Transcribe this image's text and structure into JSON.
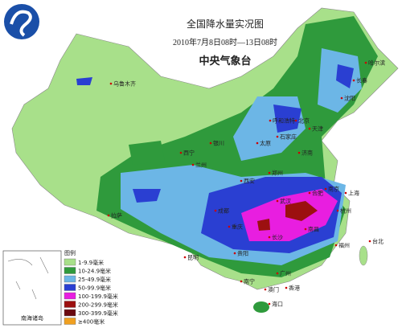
{
  "header": {
    "title": "全国降水量实况图",
    "subtitle": "2010年7月8日08时—13日08时",
    "agency": "中央气象台"
  },
  "legend": {
    "title": "图例",
    "items": [
      {
        "label": "1-9.9毫米",
        "color": "#a8e08a"
      },
      {
        "label": "10-24.9毫米",
        "color": "#2f9a3c"
      },
      {
        "label": "25-49.9毫米",
        "color": "#6cb6e6"
      },
      {
        "label": "50-99.9毫米",
        "color": "#2a3fd2"
      },
      {
        "label": "100-199.9毫米",
        "color": "#e81ee0"
      },
      {
        "label": "200-299.9毫米",
        "color": "#9c1010"
      },
      {
        "label": "300-399.9毫米",
        "color": "#6a0a10"
      },
      {
        "label": "≥400毫米",
        "color": "#f0a020"
      }
    ]
  },
  "inset": {
    "label": "南海诸岛"
  },
  "cities": [
    "乌鲁木齐",
    "哈尔滨",
    "长春",
    "沈阳",
    "呼和浩特",
    "北京",
    "天津",
    "石家庄",
    "太原",
    "济南",
    "银川",
    "兰州",
    "西宁",
    "郑州",
    "西安",
    "拉萨",
    "成都",
    "重庆",
    "武汉",
    "合肥",
    "南京",
    "上海",
    "杭州",
    "长沙",
    "南昌",
    "贵阳",
    "昆明",
    "南宁",
    "广州",
    "福州",
    "台北",
    "香港",
    "澳门",
    "海口"
  ]
}
